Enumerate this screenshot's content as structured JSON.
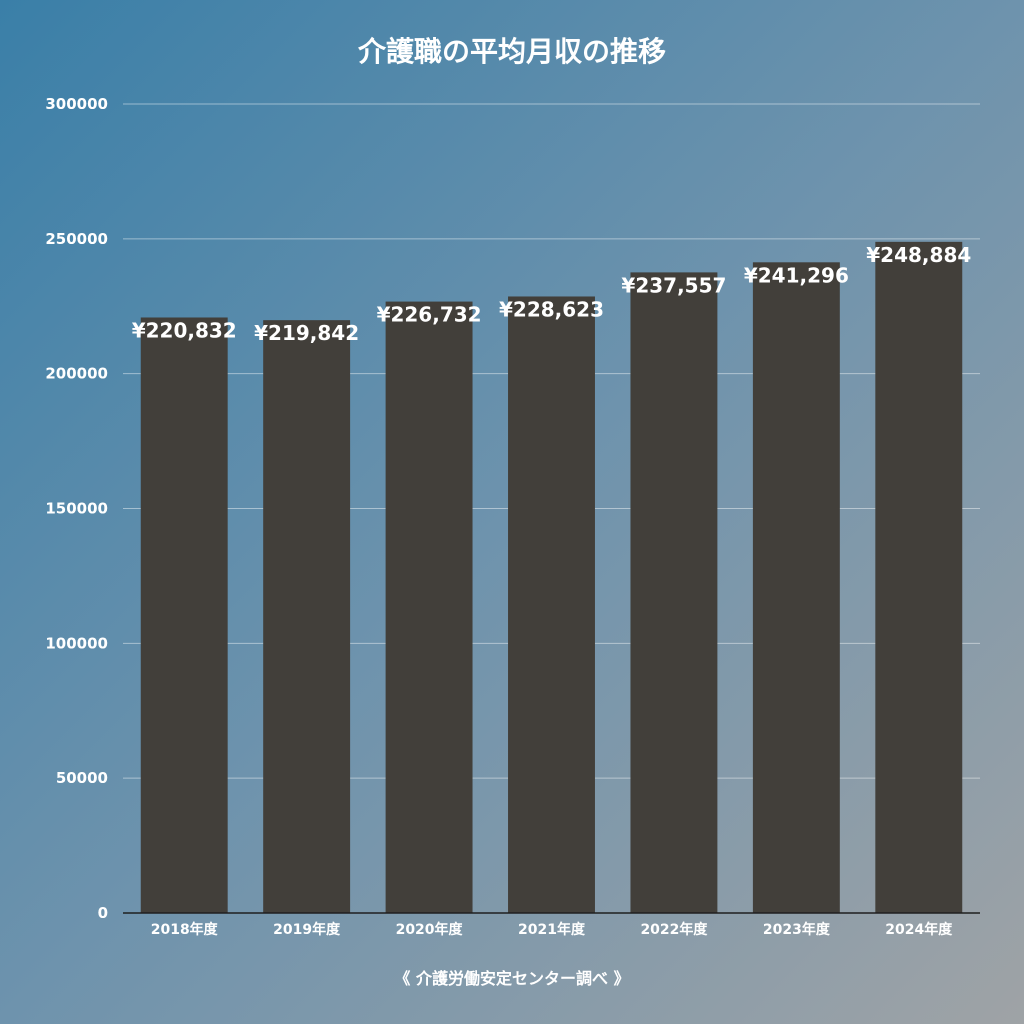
{
  "chart_data": {
    "type": "bar",
    "title": "介護職の平均月収の推移",
    "source": "《 介護労働安定センター調べ 》",
    "categories": [
      "2018年度",
      "2019年度",
      "2020年度",
      "2021年度",
      "2022年度",
      "2023年度",
      "2024年度"
    ],
    "values": [
      220832,
      219842,
      226732,
      228623,
      237557,
      241296,
      248884
    ],
    "value_labels": [
      "¥220,832",
      "¥219,842",
      "¥226,732",
      "¥228,623",
      "¥237,557",
      "¥241,296",
      "¥248,884"
    ],
    "y_ticks": [
      "0",
      "50000",
      "100000",
      "150000",
      "200000",
      "250000",
      "300000"
    ],
    "ylim": [
      0,
      300000
    ],
    "grid": true,
    "bar_color": "#423f3a",
    "background_colors": [
      "#3a7fa8",
      "#9fa3a6"
    ]
  }
}
